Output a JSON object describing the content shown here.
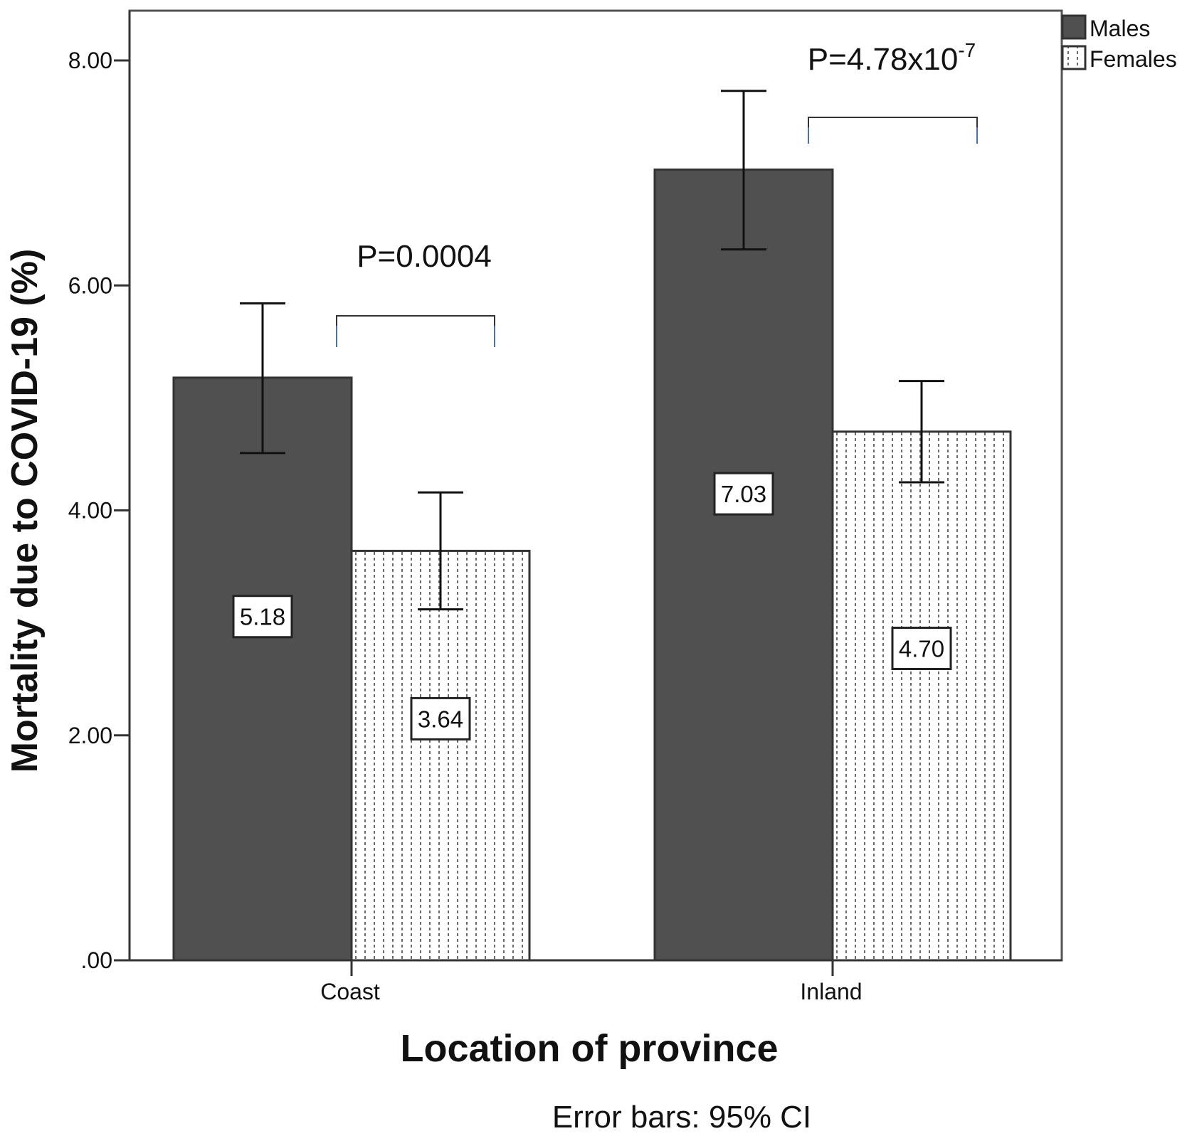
{
  "chart_data": {
    "type": "bar",
    "ylabel": "Mortality due to COVID-19 (%)",
    "xlabel": "Location of province",
    "note": "Error bars: 95% CI",
    "ylim": [
      0,
      8.4
    ],
    "yticks": [
      0,
      2,
      4,
      6,
      8
    ],
    "ytick_labels": [
      ".00",
      "2.00",
      "4.00",
      "6.00",
      "8.00"
    ],
    "categories": [
      "Coast",
      "Inland"
    ],
    "legend_position": "top-right",
    "grid": false,
    "series": [
      {
        "name": "Males",
        "values": [
          5.18,
          7.03
        ],
        "value_labels": [
          "5.18",
          "7.03"
        ],
        "ci_low": [
          4.51,
          6.32
        ],
        "ci_high": [
          5.84,
          7.73
        ],
        "pattern": "solid",
        "color": "#505050"
      },
      {
        "name": "Females",
        "values": [
          3.64,
          4.7
        ],
        "value_labels": [
          "3.64",
          "4.70"
        ],
        "ci_low": [
          3.12,
          4.25
        ],
        "ci_high": [
          4.16,
          5.15
        ],
        "pattern": "dotted",
        "color": "#ffffff"
      }
    ],
    "annotations": [
      {
        "category": "Coast",
        "base": "P=0.0004",
        "sup": ""
      },
      {
        "category": "Inland",
        "base": "P=4.78x10",
        "sup": "-7"
      }
    ],
    "bracket_color": "#4a6fb5"
  }
}
